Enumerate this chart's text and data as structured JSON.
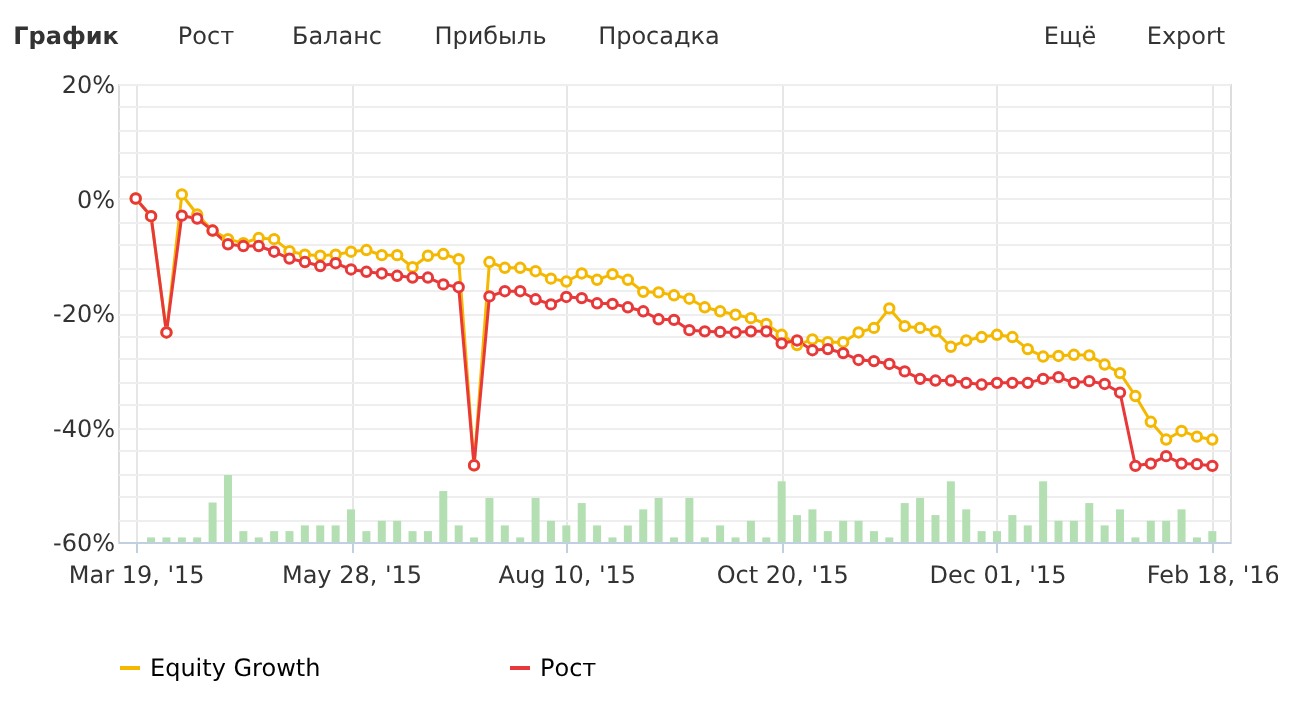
{
  "chart_data": {
    "type": "line",
    "title": "График",
    "annotations": [
      "Рост",
      "Баланс",
      "Прибыль",
      "Просадка",
      "Ещё",
      "Export"
    ],
    "categories": [
      "Mar 19, '15",
      null,
      null,
      null,
      null,
      null,
      null,
      null,
      null,
      null,
      null,
      null,
      null,
      null,
      "May 28, '15",
      null,
      null,
      null,
      null,
      null,
      null,
      null,
      null,
      null,
      null,
      null,
      null,
      null,
      "Aug 10, '15",
      null,
      null,
      null,
      null,
      null,
      null,
      null,
      null,
      null,
      null,
      null,
      null,
      null,
      "Oct 20, '15",
      null,
      null,
      null,
      null,
      null,
      null,
      null,
      null,
      null,
      null,
      null,
      null,
      null,
      "Dec 01, '15",
      null,
      null,
      null,
      null,
      null,
      null,
      null,
      null,
      null,
      null,
      null,
      null,
      null,
      "Feb 18, '16"
    ],
    "series": [
      {
        "type": "bar",
        "color": "#b3dfb3",
        "base": [
          null,
          -60,
          -60,
          -60,
          -60,
          -60,
          -60,
          -60,
          -60,
          -60,
          -60,
          -60,
          -60,
          -60,
          -60,
          -60,
          -60,
          -60,
          -60,
          -60,
          -60,
          -60,
          -60,
          -60,
          -60,
          -60,
          -60,
          -60,
          -60,
          -60,
          -60,
          -60,
          -60,
          -60,
          -60,
          -60,
          -60,
          -60,
          -60,
          -60,
          -60,
          -60,
          -60,
          -60,
          -60,
          -60,
          -60,
          -60,
          -60,
          -60,
          -60,
          -60,
          -60,
          -60,
          -60,
          -60,
          -60,
          -60,
          -60,
          -60,
          -60,
          -60,
          -60,
          -60,
          -60,
          -60,
          -60,
          -60,
          -60,
          -60,
          -60
        ],
        "values": [
          null,
          0.8,
          0.8,
          0.8,
          0.8,
          6.9,
          11.7,
          1.9,
          0.8,
          1.9,
          1.9,
          2.9,
          2.9,
          2.9,
          5.7,
          1.9,
          3.7,
          3.7,
          1.9,
          1.9,
          8.9,
          2.9,
          0.8,
          7.7,
          2.9,
          0.8,
          7.7,
          3.7,
          2.9,
          6.8,
          2.9,
          0.8,
          2.9,
          5.7,
          7.7,
          0.8,
          7.7,
          0.8,
          2.9,
          0.8,
          3.7,
          0.8,
          10.6,
          4.7,
          5.7,
          1.9,
          3.7,
          3.7,
          1.9,
          0.8,
          6.8,
          7.7,
          4.7,
          10.6,
          5.7,
          1.9,
          1.9,
          4.7,
          2.9,
          10.6,
          3.7,
          3.7,
          6.8,
          2.9,
          5.7,
          0.8,
          3.7,
          3.7,
          5.7,
          0.8,
          1.9
        ]
      },
      {
        "name": "Equity Growth",
        "color": "#f5b800",
        "values": [
          0,
          -3.1,
          -23.4,
          0.7,
          -2.8,
          -5.6,
          -7.1,
          -7.8,
          -6.9,
          -7.1,
          -9.2,
          -9.8,
          -10.0,
          -9.8,
          -9.3,
          -9.0,
          -9.9,
          -9.9,
          -12.0,
          -10.0,
          -9.7,
          -10.6,
          -46.6,
          -11.1,
          -12.1,
          -12.1,
          -12.7,
          -14.0,
          -14.5,
          -13.1,
          -14.2,
          -13.2,
          -14.2,
          -16.3,
          -16.4,
          -16.9,
          -17.5,
          -19.0,
          -19.7,
          -20.3,
          -20.9,
          -21.9,
          -23.8,
          -25.6,
          -24.6,
          -25.1,
          -25.1,
          -23.4,
          -22.6,
          -19.2,
          -22.3,
          -22.6,
          -23.2,
          -25.9,
          -24.8,
          -24.2,
          -23.8,
          -24.2,
          -26.3,
          -27.6,
          -27.5,
          -27.3,
          -27.4,
          -29.0,
          -30.5,
          -34.5,
          -39.0,
          -42.1,
          -40.6,
          -41.6,
          -42.1
        ]
      },
      {
        "name": "Рост",
        "color": "#e8393a",
        "values": [
          0,
          -3.1,
          -23.4,
          -3.0,
          -3.5,
          -5.6,
          -8.0,
          -8.3,
          -8.3,
          -9.3,
          -10.5,
          -11.1,
          -11.8,
          -11.3,
          -12.4,
          -12.8,
          -13.1,
          -13.5,
          -13.8,
          -13.8,
          -15.0,
          -15.5,
          -46.6,
          -17.1,
          -16.2,
          -16.2,
          -17.6,
          -18.5,
          -17.2,
          -17.4,
          -18.3,
          -18.4,
          -19.0,
          -19.7,
          -21.1,
          -21.2,
          -23.0,
          -23.2,
          -23.3,
          -23.4,
          -23.2,
          -23.2,
          -25.3,
          -24.8,
          -26.5,
          -26.3,
          -27.0,
          -28.2,
          -28.4,
          -28.9,
          -30.2,
          -31.5,
          -31.8,
          -31.8,
          -32.2,
          -32.5,
          -32.2,
          -32.2,
          -32.2,
          -31.5,
          -31.2,
          -32.2,
          -31.9,
          -32.4,
          -33.9,
          -46.7,
          -46.3,
          -45.0,
          -46.3,
          -46.4,
          -46.7
        ]
      }
    ],
    "ylim": [
      -60,
      20
    ],
    "yticks": [
      {
        "value": -60,
        "label": "-60%"
      },
      {
        "value": -56,
        "label": null
      },
      {
        "value": -52,
        "label": null
      },
      {
        "value": -48,
        "label": null
      },
      {
        "value": -44,
        "label": null
      },
      {
        "value": -40,
        "label": "-40%"
      },
      {
        "value": -36,
        "label": null
      },
      {
        "value": -32,
        "label": null
      },
      {
        "value": -28,
        "label": null
      },
      {
        "value": -24,
        "label": null
      },
      {
        "value": -20,
        "label": "-20%"
      },
      {
        "value": -16,
        "label": null
      },
      {
        "value": -12,
        "label": null
      },
      {
        "value": -8,
        "label": null
      },
      {
        "value": -4,
        "label": null
      },
      {
        "value": 0,
        "label": "0%"
      },
      {
        "value": 4,
        "label": null
      },
      {
        "value": 8,
        "label": null
      },
      {
        "value": 12,
        "label": null
      },
      {
        "value": 16,
        "label": null
      },
      {
        "value": 20,
        "label": "20%"
      }
    ],
    "grid": true,
    "legend": "bottom",
    "marker": "circle",
    "line_style": "solid"
  }
}
